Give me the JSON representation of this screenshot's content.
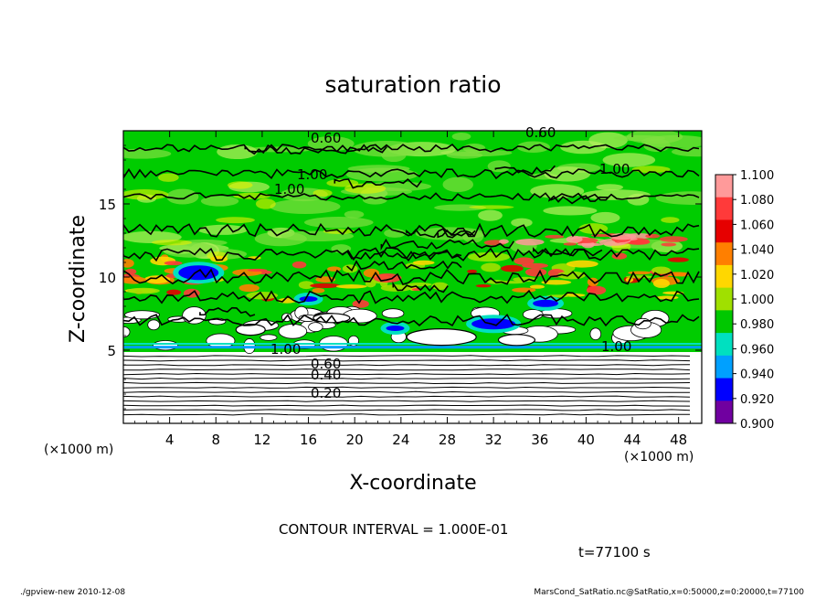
{
  "chart_data": {
    "type": "heatmap",
    "title": "saturation ratio",
    "xlabel": "X-coordinate",
    "ylabel": "Z-coordinate",
    "x_unit": "(×1000 m)",
    "y_unit": "(×1000 m)",
    "xlim": [
      0,
      50
    ],
    "ylim": [
      0,
      20
    ],
    "x_ticks": [
      4,
      8,
      12,
      16,
      20,
      24,
      28,
      32,
      36,
      40,
      44,
      48
    ],
    "y_ticks": [
      5,
      10,
      15
    ],
    "colorbar": {
      "levels": [
        "1.100",
        "1.080",
        "1.060",
        "1.040",
        "1.020",
        "1.000",
        "0.980",
        "0.960",
        "0.940",
        "0.920",
        "0.900"
      ],
      "colors": [
        "#ff9a9a",
        "#ff3a3a",
        "#e60000",
        "#ff7f00",
        "#ffd700",
        "#a0e000",
        "#00c800",
        "#00e0c0",
        "#00a0ff",
        "#0000ff",
        "#7000a0"
      ]
    },
    "contour_labels": [
      "0.60",
      "0.60",
      "1.00",
      "1.00",
      "1.00",
      "1.00",
      "1.00",
      "0.60",
      "0.40",
      "0.20"
    ],
    "contour_interval": "CONTOUR INTERVAL = 1.000E-01",
    "time_label": "t=77100 s",
    "footer_left": "./gpview-new  2010-12-08",
    "footer_right": "MarsCond_SatRatio.nc@SatRatio,x=0:50000,z=0:20000,t=77100"
  }
}
